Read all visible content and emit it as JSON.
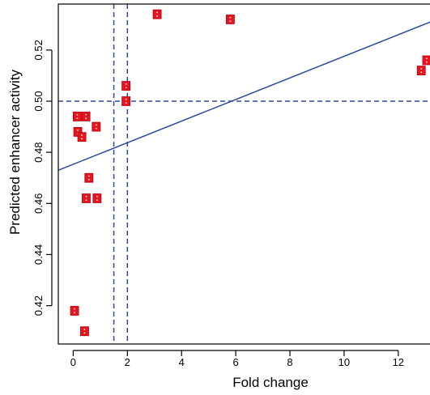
{
  "chart_data": {
    "type": "scatter",
    "title": "",
    "xlabel": "Fold change",
    "ylabel": "Predicted enhancer activity",
    "xlim": [
      -0.55,
      13.5
    ],
    "ylim": [
      0.405,
      0.538
    ],
    "x_ticks": [
      0,
      2,
      4,
      6,
      8,
      10,
      12
    ],
    "y_ticks": [
      0.42,
      0.44,
      0.46,
      0.48,
      0.5,
      0.52
    ],
    "grid": false,
    "points": [
      {
        "x": 0.05,
        "y": 0.418
      },
      {
        "x": 0.42,
        "y": 0.41
      },
      {
        "x": 0.15,
        "y": 0.494
      },
      {
        "x": 0.47,
        "y": 0.494
      },
      {
        "x": 0.17,
        "y": 0.488
      },
      {
        "x": 0.32,
        "y": 0.486
      },
      {
        "x": 0.85,
        "y": 0.49
      },
      {
        "x": 0.58,
        "y": 0.47
      },
      {
        "x": 0.48,
        "y": 0.462
      },
      {
        "x": 0.88,
        "y": 0.462
      },
      {
        "x": 1.95,
        "y": 0.506
      },
      {
        "x": 1.95,
        "y": 0.5
      },
      {
        "x": 3.1,
        "y": 0.534
      },
      {
        "x": 5.8,
        "y": 0.532
      },
      {
        "x": 12.85,
        "y": 0.512
      },
      {
        "x": 13.05,
        "y": 0.516
      }
    ],
    "fit_line": {
      "intercept": 0.4753,
      "slope": 0.004225
    },
    "reference_lines": {
      "vertical": [
        1.5,
        2.0
      ],
      "horizontal": [
        0.5
      ]
    },
    "colors": {
      "points": "#e8141e",
      "lines": "#2b4a9b",
      "axis": "#000000"
    }
  }
}
